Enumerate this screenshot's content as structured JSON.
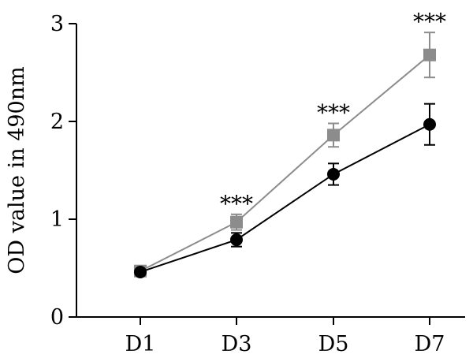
{
  "chart_data": {
    "type": "line",
    "title": "",
    "xlabel": "",
    "ylabel": "OD value in 490nm",
    "categories": [
      "D1",
      "D3",
      "D5",
      "D7"
    ],
    "ylim": [
      0,
      3
    ],
    "yticks": [
      "0",
      "1",
      "2",
      "3"
    ],
    "grid": false,
    "legend": "none",
    "series": [
      {
        "color": "#8c8c8c",
        "marker": "square",
        "values": [
          0.47,
          0.97,
          1.86,
          2.68
        ],
        "errors": [
          0.02,
          0.08,
          0.12,
          0.23
        ]
      },
      {
        "color": "#000000",
        "marker": "circle",
        "values": [
          0.46,
          0.79,
          1.46,
          1.97
        ],
        "errors": [
          0.02,
          0.07,
          0.11,
          0.21
        ]
      }
    ],
    "annotations": [
      {
        "category": "D3",
        "text": "***"
      },
      {
        "category": "D5",
        "text": "***"
      },
      {
        "category": "D7",
        "text": "***"
      }
    ]
  }
}
